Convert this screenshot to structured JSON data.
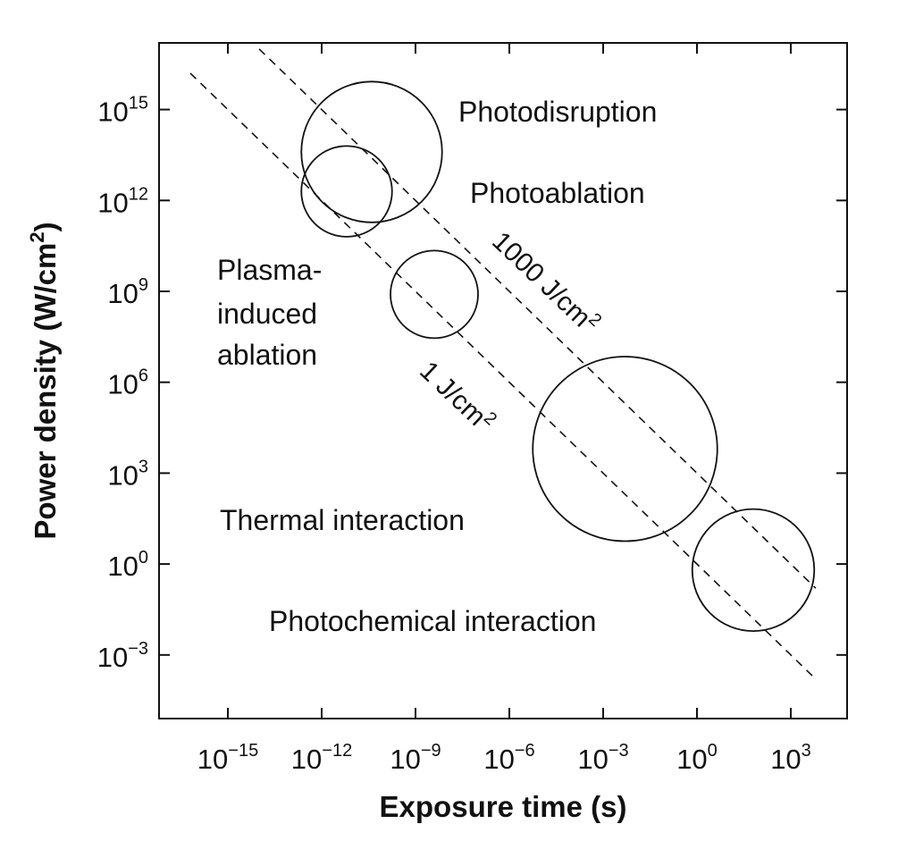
{
  "chart_data": {
    "type": "scatter",
    "xlabel": "Exposure time (s)",
    "ylabel": "Power density (W/cm",
    "ylabel_exp": "2",
    "ylabel_suffix": ")",
    "xscale": "log",
    "yscale": "log",
    "xlim_exp": [
      -17.2,
      4.8
    ],
    "ylim_exp": [
      -5.1,
      17.2
    ],
    "x_ticks": [
      {
        "base": "10",
        "exp": "−15",
        "value_exp": -15
      },
      {
        "base": "10",
        "exp": "−12",
        "value_exp": -12
      },
      {
        "base": "10",
        "exp": "−9",
        "value_exp": -9
      },
      {
        "base": "10",
        "exp": "−6",
        "value_exp": -6
      },
      {
        "base": "10",
        "exp": "−3",
        "value_exp": -3
      },
      {
        "base": "10",
        "exp": "0",
        "value_exp": 0
      },
      {
        "base": "10",
        "exp": "3",
        "value_exp": 3
      }
    ],
    "y_ticks": [
      {
        "base": "10",
        "exp": "15",
        "value_exp": 15
      },
      {
        "base": "10",
        "exp": "12",
        "value_exp": 12
      },
      {
        "base": "10",
        "exp": "9",
        "value_exp": 9
      },
      {
        "base": "10",
        "exp": "6",
        "value_exp": 6
      },
      {
        "base": "10",
        "exp": "3",
        "value_exp": 3
      },
      {
        "base": "10",
        "exp": "0",
        "value_exp": 0
      },
      {
        "base": "10",
        "exp": "−3",
        "value_exp": -3
      }
    ],
    "regions": [
      {
        "name": "Photodisruption",
        "center_log": [
          -10.4,
          13.6
        ],
        "radius_decades": 2.25
      },
      {
        "name": "Plasma-induced ablation",
        "center_log": [
          -11.2,
          12.3
        ],
        "radius_decades": 1.45
      },
      {
        "name": "Photoablation",
        "center_log": [
          -8.4,
          8.9
        ],
        "radius_decades": 1.4
      },
      {
        "name": "Thermal interaction",
        "center_log": [
          -2.3,
          3.8
        ],
        "radius_decades": 2.95
      },
      {
        "name": "Photochemical interaction",
        "center_log": [
          1.8,
          -0.2
        ],
        "radius_decades": 1.95
      }
    ],
    "fluence_lines": [
      {
        "label_base": "1000 J/cm",
        "label_exp": "2",
        "fluence": 1000,
        "x_range_exp": [
          -14.0,
          3.8
        ]
      },
      {
        "label_base": "1 J/cm",
        "label_exp": "2",
        "fluence": 1,
        "x_range_exp": [
          -16.2,
          3.8
        ]
      }
    ],
    "labels": {
      "photodisruption": "Photodisruption",
      "photoablation": "Photoablation",
      "plasma_line1": "Plasma-",
      "plasma_line2": "induced",
      "plasma_line3": "ablation",
      "thermal": "Thermal interaction",
      "photochemical": "Photochemical interaction"
    },
    "grid": false,
    "legend": "none"
  }
}
